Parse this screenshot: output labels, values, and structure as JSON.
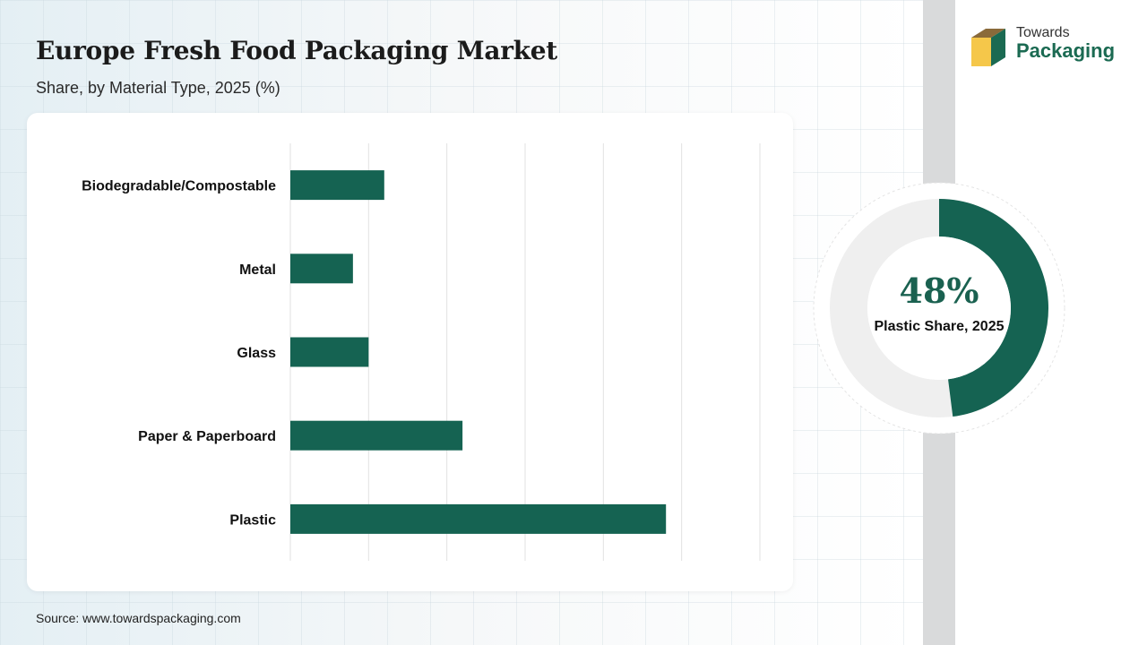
{
  "header": {
    "title": "Europe Fresh Food Packaging Market",
    "subtitle": "Share, by Material Type, 2025 (%)"
  },
  "logo": {
    "line1": "Towards",
    "line2": "Packaging",
    "icon": "box-logo-icon"
  },
  "colors": {
    "accent": "#156352",
    "ring_bg": "#efefef",
    "strip": "#d9dadb"
  },
  "chart_data": {
    "type": "bar",
    "orientation": "horizontal",
    "categories": [
      "Biodegradable/Compostable",
      "Metal",
      "Glass",
      "Paper & Paperboard",
      "Plastic"
    ],
    "values": [
      12,
      8,
      10,
      22,
      48
    ],
    "xlim": [
      0,
      60
    ],
    "grid": true,
    "title": "Europe Fresh Food Packaging Market",
    "subtitle": "Share, by Material Type, 2025 (%)"
  },
  "highlight": {
    "value": "48%",
    "share": 48,
    "caption": "Plastic Share, 2025"
  },
  "footer": {
    "source": "Source: www.towardspackaging.com"
  }
}
